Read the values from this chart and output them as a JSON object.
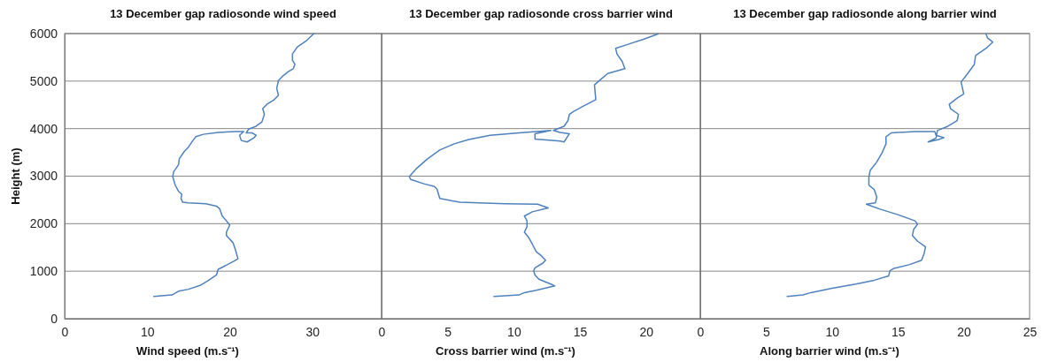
{
  "chart_data": [
    {
      "type": "line",
      "title": "13 December gap radiosonde wind speed",
      "xlabel": "Wind speed (m.s⁻¹)",
      "ylabel": "Height (m)",
      "xlim": [
        0,
        38.4
      ],
      "xticks": [
        0,
        10,
        20,
        30
      ],
      "ylim": [
        0,
        6000
      ],
      "yticks": [
        0,
        1000,
        2000,
        3000,
        4000,
        5000,
        6000
      ],
      "grid": "y",
      "marker": "none",
      "line_style": "solid",
      "series": [
        {
          "color": "#4f81bd",
          "x": [
            10.8,
            13.0,
            13.8,
            15.0,
            16.4,
            17.3,
            18.4,
            18.6,
            19.3,
            20.4,
            21.0,
            20.7,
            20.4,
            19.6,
            19.6,
            20.0,
            19.6,
            19.1,
            18.8,
            18.4,
            17.1,
            15.0,
            14.3,
            14.1,
            14.2,
            13.8,
            13.4,
            13.1,
            13.2,
            13.8,
            13.9,
            14.5,
            15.0,
            15.5,
            15.9,
            16.8,
            18.6,
            20.7,
            21.7,
            21.2,
            21.4,
            22.1,
            22.9,
            23.2,
            22.7,
            22.0,
            22.3,
            23.2,
            23.9,
            24.2,
            24.0,
            24.5,
            25.4,
            25.9,
            25.7,
            25.9,
            26.4,
            27.1,
            27.7,
            27.9,
            27.6,
            27.6,
            28.2,
            29.3,
            30.2
          ],
          "values": [
            470,
            500,
            580,
            620,
            700,
            790,
            920,
            1040,
            1100,
            1200,
            1260,
            1450,
            1600,
            1750,
            1820,
            1970,
            2060,
            2160,
            2310,
            2370,
            2420,
            2440,
            2450,
            2530,
            2620,
            2680,
            2810,
            2990,
            3090,
            3240,
            3370,
            3520,
            3610,
            3740,
            3830,
            3880,
            3920,
            3940,
            3940,
            3860,
            3750,
            3720,
            3800,
            3860,
            3910,
            3910,
            3990,
            4050,
            4140,
            4300,
            4420,
            4510,
            4610,
            4700,
            4850,
            5010,
            5100,
            5200,
            5260,
            5350,
            5440,
            5570,
            5720,
            5850,
            6000
          ]
        }
      ]
    },
    {
      "type": "line",
      "title": "13 December gap radiosonde cross barrier wind",
      "xlabel": "Cross barrier wind (m.s⁻¹)",
      "xlim": [
        0,
        24.1
      ],
      "xticks": [
        0,
        5,
        10,
        15,
        20
      ],
      "ylim": [
        0,
        6000
      ],
      "yticks": [
        0,
        1000,
        2000,
        3000,
        4000,
        5000,
        6000
      ],
      "tick_labels": "x",
      "grid": "y",
      "marker": "none",
      "line_style": "solid",
      "series": [
        {
          "color": "#4f81bd",
          "x": [
            8.5,
            10.4,
            10.8,
            11.7,
            13.1,
            12.8,
            11.9,
            11.6,
            11.5,
            11.6,
            12.2,
            12.4,
            12.1,
            11.7,
            11.4,
            11.1,
            10.8,
            11.0,
            11.0,
            10.8,
            11.4,
            12.6,
            11.8,
            9.3,
            5.9,
            4.4,
            4.2,
            4.0,
            3.2,
            2.2,
            2.1,
            2.6,
            3.5,
            4.4,
            5.5,
            6.6,
            8.2,
            10.4,
            12.8,
            11.6,
            11.6,
            13.5,
            13.8,
            14.2,
            13.5,
            13.0,
            13.8,
            14.1,
            14.2,
            14.5,
            15.3,
            16.2,
            16.1,
            16.6,
            17.1,
            18.4,
            18.2,
            17.8,
            17.7,
            18.7,
            19.8,
            20.9
          ],
          "values": [
            470,
            500,
            550,
            600,
            690,
            730,
            830,
            920,
            1010,
            1070,
            1170,
            1230,
            1320,
            1410,
            1570,
            1720,
            1820,
            1940,
            2060,
            2160,
            2250,
            2330,
            2410,
            2420,
            2450,
            2530,
            2720,
            2780,
            2840,
            2930,
            2990,
            3150,
            3370,
            3550,
            3680,
            3770,
            3860,
            3910,
            3960,
            3890,
            3780,
            3740,
            3720,
            3890,
            3920,
            3960,
            4050,
            4170,
            4300,
            4360,
            4480,
            4610,
            4920,
            5040,
            5160,
            5260,
            5410,
            5570,
            5690,
            5780,
            5880,
            5990
          ]
        }
      ]
    },
    {
      "type": "line",
      "title": "13 December gap radiosonde along barrier wind",
      "xlabel": "Along barrier wind (m.s⁻¹)",
      "xlim": [
        0,
        25
      ],
      "xticks": [
        0,
        5,
        10,
        15,
        20,
        25
      ],
      "ylim": [
        0,
        6000
      ],
      "yticks": [
        0,
        1000,
        2000,
        3000,
        4000,
        5000,
        6000
      ],
      "tick_labels": "x",
      "grid": "y",
      "marker": "none",
      "line_style": "solid",
      "series": [
        {
          "color": "#4f81bd",
          "x": [
            6.6,
            7.8,
            8.4,
            10.0,
            11.8,
            13.2,
            14.3,
            14.4,
            14.7,
            15.9,
            16.8,
            17.0,
            17.1,
            16.5,
            16.1,
            16.2,
            16.5,
            16.3,
            15.0,
            13.6,
            12.6,
            13.3,
            13.4,
            13.2,
            12.8,
            12.8,
            12.9,
            13.4,
            13.8,
            14.1,
            14.1,
            14.5,
            16.3,
            17.8,
            17.9,
            18.5,
            18.1,
            17.3,
            17.9,
            18.0,
            18.8,
            19.5,
            19.6,
            19.0,
            18.9,
            19.5,
            20.0,
            19.8,
            20.3,
            20.8,
            20.9,
            21.7,
            22.2,
            21.8,
            21.7
          ],
          "values": [
            470,
            500,
            550,
            640,
            730,
            810,
            900,
            1010,
            1060,
            1140,
            1230,
            1380,
            1510,
            1630,
            1750,
            1880,
            1990,
            2060,
            2190,
            2310,
            2410,
            2440,
            2560,
            2720,
            2810,
            2990,
            3120,
            3300,
            3490,
            3680,
            3830,
            3910,
            3940,
            3940,
            3860,
            3810,
            3770,
            3720,
            3800,
            3960,
            4050,
            4170,
            4300,
            4420,
            4510,
            4640,
            4730,
            4980,
            5160,
            5350,
            5540,
            5690,
            5820,
            5910,
            5990
          ]
        }
      ]
    }
  ]
}
